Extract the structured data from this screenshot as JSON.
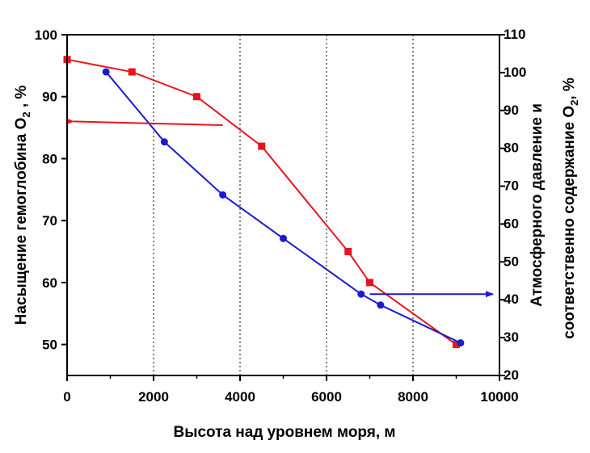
{
  "chart_data": {
    "type": "line",
    "xlabel": "Высота над уровнем моря, м",
    "ylabel_left": {
      "main": "Насыщение гемоглобина O",
      "sub": "2",
      "tail": " , %"
    },
    "ylabel_right": {
      "line1": "Атмосферного давление и",
      "line2_main": "соответственно содержание O",
      "line2_sub": "2",
      "line2_tail": ", %"
    },
    "xlim": [
      0,
      10000
    ],
    "xticks": [
      0,
      2000,
      4000,
      6000,
      8000,
      10000
    ],
    "ylim_left": [
      45,
      100
    ],
    "yticks_left": [
      50,
      60,
      70,
      80,
      90,
      100
    ],
    "ylim_right": [
      20,
      110
    ],
    "yticks_right": [
      20,
      30,
      40,
      50,
      60,
      70,
      80,
      90,
      100,
      110
    ],
    "vertical_grid_at": [
      2000,
      4000,
      6000,
      8000
    ],
    "series": [
      {
        "axis": "left",
        "color": "#e8141c",
        "marker": "square",
        "x": [
          0,
          1500,
          3000,
          4500,
          6500,
          7000,
          9000
        ],
        "y": [
          96,
          94,
          90,
          82,
          65,
          60,
          50
        ]
      },
      {
        "axis": "right",
        "color": "#1a1acf",
        "marker": "circle",
        "x": [
          900,
          2250,
          3600,
          5000,
          6800,
          7250,
          9100
        ],
        "y": [
          100.2,
          81.7,
          67.7,
          56.2,
          41.5,
          38.6,
          28.6
        ]
      }
    ],
    "arrows": [
      {
        "color": "#e8141c",
        "points_to": "left",
        "from_x": 3600,
        "from_y": 85.4,
        "to_x": 150,
        "to_y": 86
      },
      {
        "color": "#1a1acf",
        "points_to": "right",
        "from_x": 7000,
        "from_y": 41.5,
        "to_x": 9850,
        "to_y": 41.5
      }
    ]
  }
}
